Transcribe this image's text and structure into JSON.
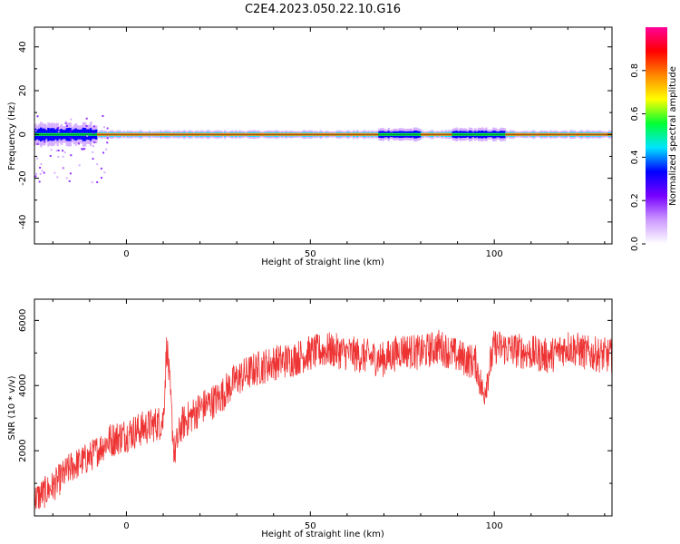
{
  "title": "C2E4.2023.050.22.10.G16",
  "chart_data": [
    {
      "type": "heatmap",
      "xlabel": "Height of straight line (km)",
      "ylabel": "Frequency (Hz)",
      "xlim": [
        -25,
        132
      ],
      "ylim": [
        -50,
        49
      ],
      "xticks": [
        0,
        50,
        100
      ],
      "xtick_labels": [
        "0",
        "50",
        "100"
      ],
      "yticks": [
        -40,
        -20,
        0,
        20,
        40
      ],
      "ytick_labels": [
        "-40",
        "-20",
        "0",
        "20",
        "40"
      ],
      "ridge_frequency_hz": 0,
      "colorbar": {
        "label": "Normalized spectral amplitude",
        "range": [
          0,
          1
        ],
        "ticks": [
          0.0,
          0.2,
          0.4,
          0.6,
          0.8
        ],
        "tick_labels": [
          "0.0",
          "0.2",
          "0.4",
          "0.6",
          "0.8"
        ],
        "colors": [
          "#ffffff",
          "#cc99ff",
          "#7700ff",
          "#0000ff",
          "#00e5ff",
          "#00ff33",
          "#ffff00",
          "#ff8800",
          "#ff0000",
          "#ff0099"
        ]
      }
    },
    {
      "type": "line",
      "xlabel": "Height of straight line (km)",
      "ylabel": "SNR (10 * v/v)",
      "xlim": [
        -25,
        132
      ],
      "ylim": [
        0,
        6650
      ],
      "xticks": [
        0,
        50,
        100
      ],
      "xtick_labels": [
        "0",
        "50",
        "100"
      ],
      "yticks": [
        2000,
        4000,
        6000
      ],
      "ytick_labels": [
        "2000",
        "4000",
        "6000"
      ],
      "series": [
        {
          "color": "#ee3333",
          "x": [
            -25,
            -20,
            -15,
            -10,
            -5,
            0,
            5,
            10,
            11,
            13,
            15,
            20,
            25,
            30,
            35,
            40,
            45,
            50,
            55,
            60,
            65,
            70,
            75,
            80,
            85,
            90,
            95,
            97,
            100,
            105,
            110,
            115,
            120,
            125,
            132
          ],
          "y": [
            500,
            900,
            1500,
            1800,
            2300,
            2500,
            2700,
            2900,
            5300,
            1900,
            2800,
            3300,
            3600,
            4200,
            4500,
            4700,
            4800,
            5000,
            5100,
            5000,
            4900,
            4800,
            5100,
            5000,
            5200,
            4900,
            4700,
            3700,
            5200,
            5100,
            5000,
            4900,
            5200,
            5000,
            4900
          ],
          "noise_amplitude": 550
        }
      ]
    }
  ]
}
